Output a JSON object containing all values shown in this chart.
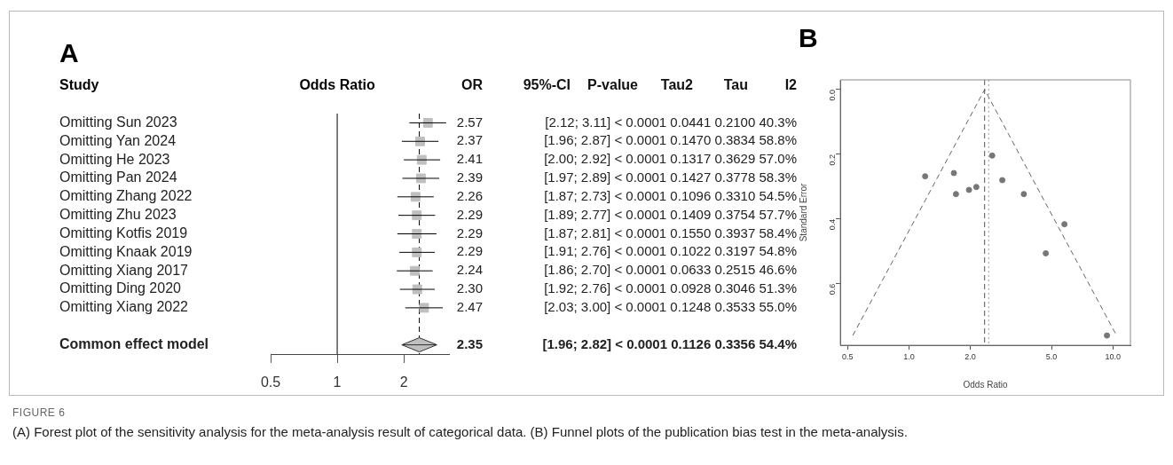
{
  "chart_data": [
    {
      "type": "scatter",
      "orientation": "horizontal",
      "title": "A",
      "ylabel": "Study",
      "xlabel": "Odds Ratio",
      "log": "x",
      "xlim": [
        0.5,
        3.2
      ],
      "xticks": [
        0.5,
        1,
        2
      ],
      "grid": false,
      "categories": [
        "Omitting Sun 2023",
        "Omitting Yan 2024",
        "Omitting He 2023",
        "Omitting Pan 2024",
        "Omitting Zhang 2022",
        "Omitting Zhu 2023",
        "Omitting Kotfis 2019",
        "Omitting Knaak 2019",
        "Omitting Xiang 2017",
        "Omitting Ding 2020",
        "Omitting Xiang 2022",
        null,
        "Common effect model"
      ],
      "ref_lines": [
        {
          "axis": "x",
          "value": 1,
          "line_style": "solid",
          "color": "#000000"
        },
        {
          "axis": "x",
          "value": 2.35,
          "line_style": "dashed",
          "color": "#000000"
        }
      ],
      "series": [
        {
          "color": "#bfbfbf",
          "marker": "square",
          "values": [
            2.57,
            2.37,
            2.41,
            2.39,
            2.26,
            2.29,
            2.29,
            2.29,
            2.24,
            2.3,
            2.47,
            null,
            null
          ],
          "errors": [
            [
              2.12,
              3.11
            ],
            [
              1.96,
              2.87
            ],
            [
              2.0,
              2.92
            ],
            [
              1.97,
              2.89
            ],
            [
              1.87,
              2.73
            ],
            [
              1.89,
              2.77
            ],
            [
              1.87,
              2.81
            ],
            [
              1.91,
              2.76
            ],
            [
              1.86,
              2.7
            ],
            [
              1.92,
              2.76
            ],
            [
              2.03,
              3.0
            ],
            null,
            null
          ],
          "value_labels": [
            "2.57",
            "2.37",
            "2.41",
            "2.39",
            "2.26",
            "2.29",
            "2.29",
            "2.29",
            "2.24",
            "2.30",
            "2.47",
            null,
            null
          ]
        },
        {
          "color": "#bfbfbf",
          "marker": "diamond",
          "values": [
            null,
            null,
            null,
            null,
            null,
            null,
            null,
            null,
            null,
            null,
            null,
            null,
            2.35
          ],
          "errors": [
            null,
            null,
            null,
            null,
            null,
            null,
            null,
            null,
            null,
            null,
            null,
            null,
            [
              1.96,
              2.82
            ]
          ],
          "value_labels": [
            null,
            null,
            null,
            null,
            null,
            null,
            null,
            null,
            null,
            null,
            null,
            null,
            "2.35"
          ]
        }
      ],
      "annotations": [
        "OR",
        "95%-CI",
        "P-value",
        "Tau2",
        "Tau",
        "I2",
        "[2.12; 3.11] < 0.0001 0.0441 0.2100 40.3%",
        "[1.96; 2.87] < 0.0001 0.1470 0.3834 58.8%",
        "[2.00; 2.92] < 0.0001 0.1317 0.3629 57.0%",
        "[1.97; 2.89] < 0.0001 0.1427 0.3778 58.3%",
        "[1.87; 2.73] < 0.0001 0.1096 0.3310 54.5%",
        "[1.89; 2.77] < 0.0001 0.1409 0.3754 57.7%",
        "[1.87; 2.81] < 0.0001 0.1550 0.3937 58.4%",
        "[1.91; 2.76] < 0.0001 0.1022 0.3197 54.8%",
        "[1.86; 2.70] < 0.0001 0.0633 0.2515 46.6%",
        "[1.92; 2.76] < 0.0001 0.0928 0.3046 51.3%",
        "[2.03; 3.00] < 0.0001 0.1248 0.3533 55.0%",
        "[1.96; 2.82] < 0.0001 0.1126 0.3356 54.4%"
      ]
    },
    {
      "type": "scatter",
      "title": "B",
      "xlabel": "Odds Ratio",
      "ylabel": "Standard Error",
      "log": "x",
      "xlim": [
        0.46,
        12.2
      ],
      "xticks": [
        {
          "value": 0.5,
          "label": "0.5"
        },
        {
          "value": 1,
          "label": "1.0"
        },
        {
          "value": 2,
          "label": "2.0"
        },
        {
          "value": 5,
          "label": "5.0"
        },
        {
          "value": 10,
          "label": "10.0"
        }
      ],
      "ylim": [
        0.79,
        -0.03
      ],
      "yticks": [
        {
          "value": 0,
          "label": "0.0"
        },
        0.2,
        0.4,
        0.6
      ],
      "grid": false,
      "marker": "circle",
      "series": [
        {
          "color": "#777777",
          "x": [
            1.2,
            1.66,
            1.7,
            1.97,
            2.14,
            2.56,
            2.87,
            3.66,
            5.79,
            4.69,
            9.36
          ],
          "values": [
            0.268,
            0.258,
            0.323,
            0.31,
            0.301,
            0.204,
            0.28,
            0.323,
            0.416,
            0.506,
            0.76
          ]
        },
        {
          "type": "line",
          "color": "#666666",
          "line_style": "dashed",
          "marker": "none",
          "x": [
            0.53,
            2.35,
            10.43
          ],
          "values": [
            0.76,
            0,
            0.76
          ]
        }
      ],
      "ref_lines": [
        {
          "axis": "x",
          "value": 2.35,
          "line_style": "dashed",
          "color": "#555555"
        },
        {
          "axis": "x",
          "value": 2.46,
          "line_style": "dotted",
          "color": "#999999"
        }
      ],
      "annotations": [
        "FIGURE 6",
        "(A) Forest plot of the sensitivity analysis for the meta-analysis result of categorical data. (B) Funnel plots of the publication bias test in the meta-analysis."
      ]
    }
  ]
}
